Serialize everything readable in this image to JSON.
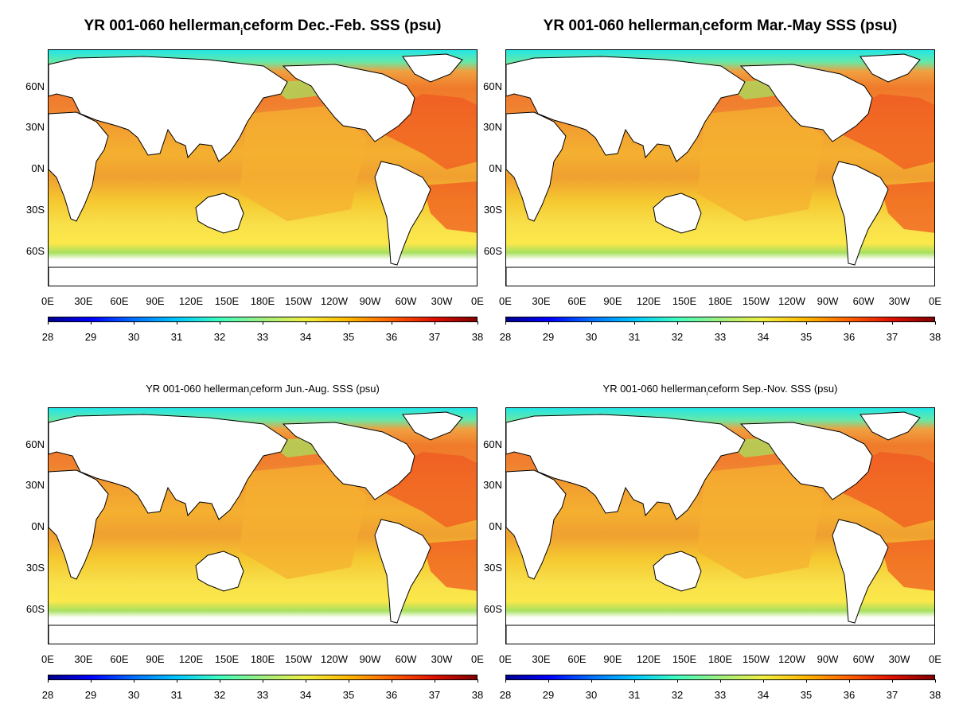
{
  "panels": [
    {
      "title_pre": "YR 001-060 hellerman",
      "title_sub": "i",
      "title_post": "ceform Dec.-Feb. SSS (psu)"
    },
    {
      "title_pre": "YR 001-060 hellerman",
      "title_sub": "i",
      "title_post": "ceform Mar.-May SSS (psu)"
    },
    {
      "title_pre": "YR 001-060 hellerman",
      "title_sub": "i",
      "title_post": "ceform Jun.-Aug. SSS (psu)"
    },
    {
      "title_pre": "YR 001-060 hellerman",
      "title_sub": "i",
      "title_post": "ceform Sep.-Nov. SSS (psu)"
    }
  ],
  "lat_labels": [
    "60N",
    "30N",
    "0N",
    "30S",
    "60S"
  ],
  "lon_labels": [
    "0E",
    "30E",
    "60E",
    "90E",
    "120E",
    "150E",
    "180E",
    "150W",
    "120W",
    "90W",
    "60W",
    "30W",
    "0E"
  ],
  "colorbar": {
    "labels": [
      "28",
      "29",
      "30",
      "31",
      "32",
      "33",
      "34",
      "35",
      "36",
      "37",
      "38"
    ],
    "min": 28,
    "max": 38,
    "colors": [
      "#00008f",
      "#0000ff",
      "#0070ff",
      "#00c8ff",
      "#40ffc0",
      "#a0f080",
      "#f0f040",
      "#ffb800",
      "#ff6000",
      "#e01000",
      "#800000"
    ]
  },
  "ocean_colors": {
    "north_atlantic": "#f05a20",
    "pacific": "#f5b030",
    "arctic": "#22e6e6",
    "southern": "#fce84a"
  }
}
